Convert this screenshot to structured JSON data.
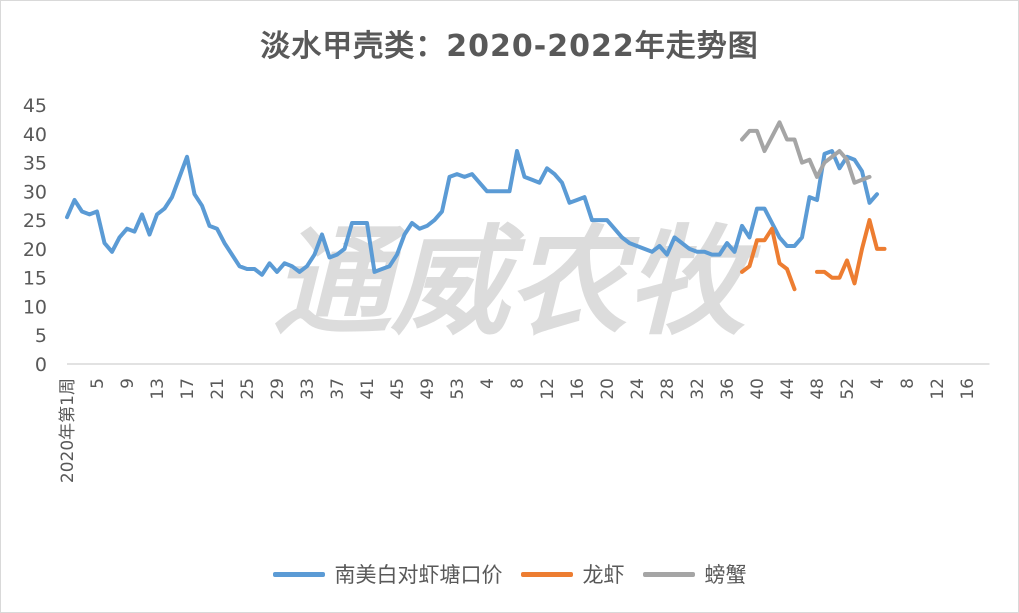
{
  "chart_data": {
    "type": "line",
    "title": "淡水甲壳类：2020-2022年走势图",
    "watermark": "通威农牧",
    "xlabel": "",
    "ylabel": "",
    "ylim": [
      0,
      45
    ],
    "yticks": [
      0,
      5,
      10,
      15,
      20,
      25,
      30,
      35,
      40,
      45
    ],
    "grid": false,
    "legend_position": "bottom",
    "x_tick_labels": [
      "2020年第1周",
      "5",
      "9",
      "13",
      "17",
      "21",
      "25",
      "29",
      "33",
      "37",
      "41",
      "45",
      "49",
      "53",
      "4",
      "8",
      "12",
      "16",
      "20",
      "24",
      "28",
      "32",
      "36",
      "40",
      "44",
      "48",
      "52",
      "4",
      "8",
      "12",
      "16"
    ],
    "x_tick_step": 4,
    "x_total_periods": 124,
    "colors": {
      "shrimp": "#5b9bd5",
      "crayfish": "#ed7d31",
      "crab": "#a5a5a5"
    },
    "series": [
      {
        "name": "南美白对虾塘口价",
        "color": "#5b9bd5",
        "start": 0,
        "values": [
          25.5,
          28.5,
          26.5,
          26.0,
          26.5,
          21.0,
          19.5,
          22.0,
          23.5,
          23.0,
          26.0,
          22.5,
          26.0,
          27.0,
          29.0,
          32.5,
          36.0,
          29.5,
          27.5,
          24.0,
          23.5,
          21.0,
          19.0,
          17.0,
          16.5,
          16.5,
          15.5,
          17.5,
          16.0,
          17.5,
          17.0,
          16.0,
          17.0,
          19.0,
          22.5,
          18.5,
          19.0,
          20.0,
          24.5,
          24.5,
          24.5,
          16.0,
          16.5,
          17.0,
          19.0,
          22.5,
          24.5,
          23.5,
          24.0,
          25.0,
          26.5,
          32.5,
          33.0,
          32.5,
          33.0,
          31.5,
          30.0,
          30.0,
          30.0,
          30.0,
          37.0,
          32.5,
          32.0,
          31.5,
          34.0,
          33.0,
          31.5,
          28.0,
          28.5,
          29.0,
          25.0,
          25.0,
          25.0,
          23.5,
          22.0,
          21.0,
          20.5,
          20.0,
          19.5,
          20.5,
          19.0,
          22.0,
          21.0,
          20.0,
          19.5,
          19.5,
          19.0,
          19.0,
          21.0,
          19.5,
          24.0,
          22.0,
          27.0,
          27.0,
          24.5,
          22.0,
          20.5,
          20.5,
          22.0,
          29.0,
          28.5,
          36.5,
          37.0,
          34.0,
          36.0,
          35.5,
          33.5,
          28.0,
          29.5
        ]
      },
      {
        "name": "龙虾",
        "color": "#ed7d31",
        "start": 90,
        "values": [
          16.0,
          17.0,
          21.5,
          21.5,
          23.5,
          17.5,
          16.5,
          13.0,
          null,
          null,
          16.0,
          16.0,
          15.0,
          15.0,
          18.0,
          14.0,
          20.0,
          25.0,
          20.0,
          20.0
        ]
      },
      {
        "name": "螃蟹",
        "color": "#a5a5a5",
        "start": 90,
        "values": [
          39.0,
          40.5,
          40.5,
          37.0,
          39.5,
          42.0,
          39.0,
          39.0,
          35.0,
          35.5,
          32.5,
          35.0,
          36.0,
          37.0,
          35.5,
          31.5,
          32.0,
          32.5
        ]
      }
    ]
  }
}
